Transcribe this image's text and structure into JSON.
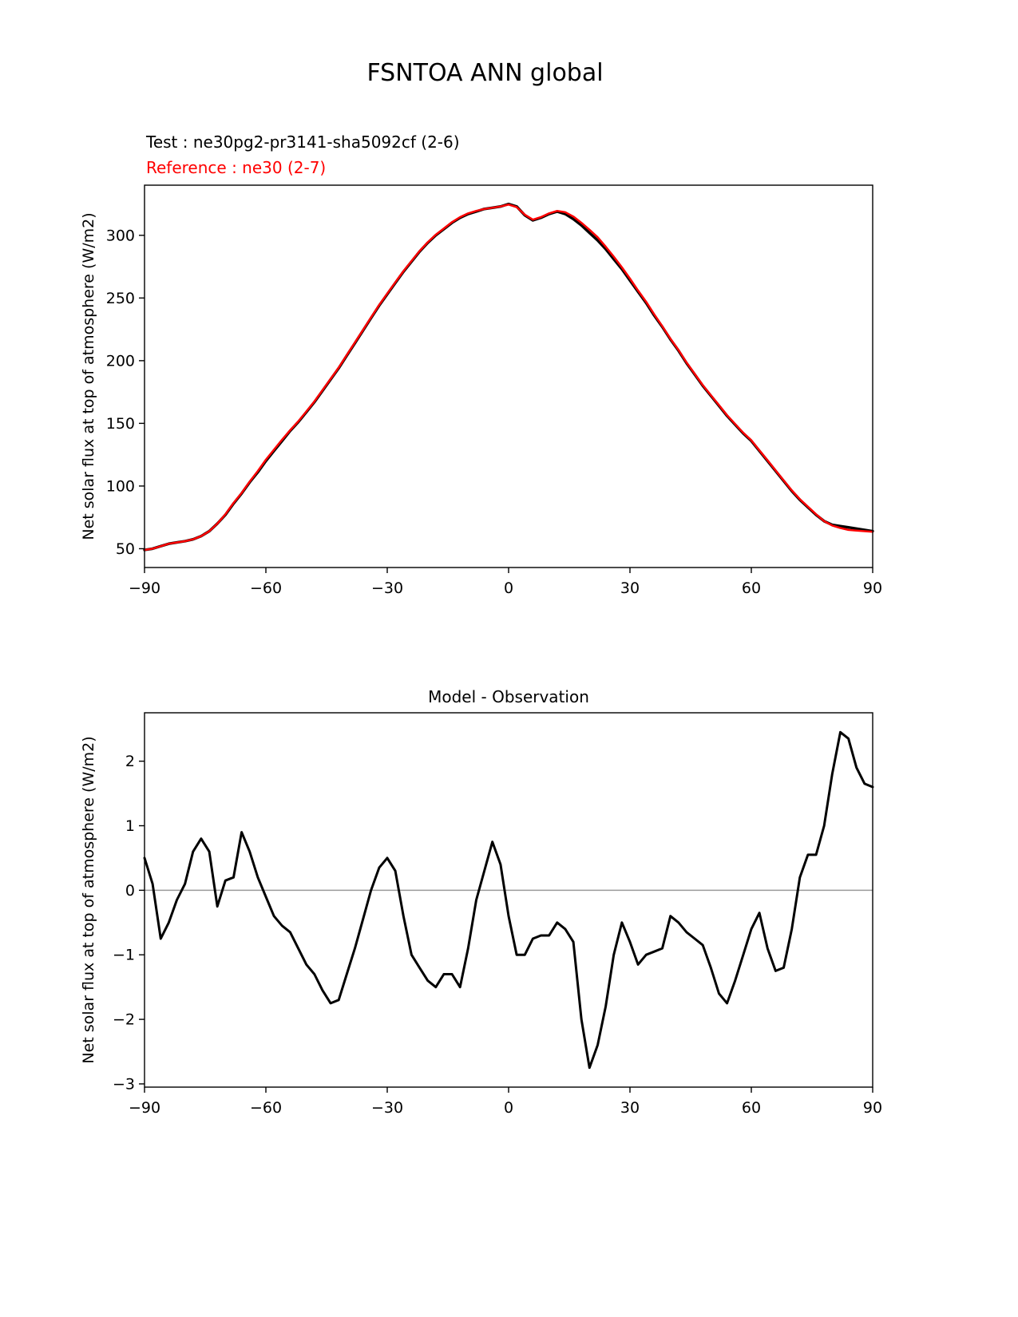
{
  "figure": {
    "title": "FSNTOA ANN global"
  },
  "chart_data": [
    {
      "type": "line",
      "title": "",
      "xlabel": "",
      "ylabel": "Net solar flux at top of atmosphere (W/m2)",
      "xlim": [
        -90,
        90
      ],
      "ylim": [
        35,
        340
      ],
      "grid": false,
      "legend_position": "annotations-top-left",
      "xticks": [
        -90,
        -60,
        -30,
        0,
        30,
        60,
        90
      ],
      "xtick_labels": [
        "−90",
        "−60",
        "−30",
        "0",
        "30",
        "60",
        "90"
      ],
      "yticks": [
        50,
        100,
        150,
        200,
        250,
        300
      ],
      "ytick_labels": [
        "50",
        "100",
        "150",
        "200",
        "250",
        "300"
      ],
      "x": [
        -90,
        -88,
        -86,
        -84,
        -82,
        -80,
        -78,
        -76,
        -74,
        -72,
        -70,
        -68,
        -66,
        -64,
        -62,
        -60,
        -58,
        -56,
        -54,
        -52,
        -50,
        -48,
        -46,
        -44,
        -42,
        -40,
        -38,
        -36,
        -34,
        -32,
        -30,
        -28,
        -26,
        -24,
        -22,
        -20,
        -18,
        -16,
        -14,
        -12,
        -10,
        -8,
        -6,
        -4,
        -2,
        0,
        2,
        4,
        6,
        8,
        10,
        12,
        14,
        16,
        18,
        20,
        22,
        24,
        26,
        28,
        30,
        32,
        34,
        36,
        38,
        40,
        42,
        44,
        46,
        48,
        50,
        52,
        54,
        56,
        58,
        60,
        62,
        64,
        66,
        68,
        70,
        72,
        74,
        76,
        78,
        80,
        82,
        84,
        86,
        88,
        90
      ],
      "series": [
        {
          "name": "Test : ne30pg2-pr3141-sha5092cf (2-6)",
          "color": "#000000",
          "values": [
            49,
            50,
            52,
            54,
            55,
            56,
            57.5,
            60,
            64,
            70,
            77,
            86,
            94,
            103,
            111,
            120,
            128,
            136,
            144,
            151,
            159,
            167,
            176,
            185,
            194,
            204,
            214,
            224,
            234,
            244,
            253,
            262,
            271,
            279,
            287,
            294,
            300,
            305,
            310,
            314,
            317,
            319,
            321,
            322,
            323,
            325,
            323,
            316,
            312,
            314,
            317,
            319,
            317,
            313,
            308,
            302,
            296,
            289,
            281,
            273,
            264,
            255,
            246,
            236,
            227,
            217,
            208,
            198,
            189,
            180,
            172,
            164,
            156,
            149,
            142,
            136,
            128,
            120,
            112,
            104,
            96,
            89,
            83,
            77,
            72,
            69,
            68,
            67,
            66,
            65,
            64
          ]
        },
        {
          "name": "Reference : ne30 (2-7)",
          "color": "#ff0000",
          "values": [
            49,
            50,
            52,
            54,
            55,
            56,
            57.5,
            60,
            64,
            70,
            77.5,
            86.5,
            94.5,
            103.5,
            112,
            121,
            129,
            137,
            144.5,
            151.5,
            159.5,
            167.5,
            176.5,
            185.5,
            194.5,
            204.5,
            214.5,
            224.5,
            234.5,
            244.5,
            253.5,
            262.5,
            271.5,
            279.5,
            287.5,
            294.5,
            300.5,
            305.5,
            310.5,
            314.5,
            317.5,
            319.5,
            321,
            322,
            323,
            324.5,
            322.5,
            316.5,
            312.5,
            314.5,
            317.5,
            319.5,
            318.5,
            315,
            310,
            304.5,
            298.5,
            291,
            283,
            274.5,
            265.5,
            256,
            247,
            237,
            227.5,
            217.5,
            208.5,
            198.5,
            189.5,
            180.5,
            172.5,
            164.5,
            156.5,
            149.5,
            142.5,
            136.5,
            128.5,
            120.5,
            112.5,
            104.5,
            96.5,
            89.5,
            83.5,
            77.5,
            72,
            68.5,
            66.5,
            65,
            64.5,
            64,
            63.5
          ]
        }
      ]
    },
    {
      "type": "line",
      "title": "Model - Observation",
      "xlabel": "",
      "ylabel": "Net solar flux at top of atmosphere (W/m2)",
      "xlim": [
        -90,
        90
      ],
      "ylim": [
        -3.05,
        2.75
      ],
      "grid": false,
      "zero_line": true,
      "zero_line_color": "#9a9a9a",
      "xticks": [
        -90,
        -60,
        -30,
        0,
        30,
        60,
        90
      ],
      "xtick_labels": [
        "−90",
        "−60",
        "−30",
        "0",
        "30",
        "60",
        "90"
      ],
      "yticks": [
        -3,
        -2,
        -1,
        0,
        1,
        2
      ],
      "ytick_labels": [
        "−3",
        "−2",
        "−1",
        "0",
        "1",
        "2"
      ],
      "x": [
        -90,
        -88,
        -86,
        -84,
        -82,
        -80,
        -78,
        -76,
        -74,
        -72,
        -70,
        -68,
        -66,
        -64,
        -62,
        -60,
        -58,
        -56,
        -54,
        -52,
        -50,
        -48,
        -46,
        -44,
        -42,
        -40,
        -38,
        -36,
        -34,
        -32,
        -30,
        -28,
        -26,
        -24,
        -22,
        -20,
        -18,
        -16,
        -14,
        -12,
        -10,
        -8,
        -6,
        -4,
        -2,
        0,
        2,
        4,
        6,
        8,
        10,
        12,
        14,
        16,
        18,
        20,
        22,
        24,
        26,
        28,
        30,
        32,
        34,
        36,
        38,
        40,
        42,
        44,
        46,
        48,
        50,
        52,
        54,
        56,
        58,
        60,
        62,
        64,
        66,
        68,
        70,
        72,
        74,
        76,
        78,
        80,
        82,
        84,
        86,
        88,
        90
      ],
      "series": [
        {
          "name": "Model - Observation",
          "color": "#000000",
          "values": [
            0.5,
            0.1,
            -0.75,
            -0.5,
            -0.15,
            0.1,
            0.6,
            0.8,
            0.6,
            -0.25,
            0.15,
            0.2,
            0.9,
            0.6,
            0.2,
            -0.1,
            -0.4,
            -0.55,
            -0.65,
            -0.9,
            -1.15,
            -1.3,
            -1.55,
            -1.75,
            -1.7,
            -1.3,
            -0.9,
            -0.45,
            0.0,
            0.35,
            0.5,
            0.3,
            -0.4,
            -1.0,
            -1.2,
            -1.4,
            -1.5,
            -1.3,
            -1.3,
            -1.5,
            -0.9,
            -0.15,
            0.3,
            0.75,
            0.4,
            -0.4,
            -1.0,
            -1.0,
            -0.75,
            -0.7,
            -0.7,
            -0.5,
            -0.6,
            -0.8,
            -2.0,
            -2.75,
            -2.4,
            -1.8,
            -1.0,
            -0.5,
            -0.8,
            -1.15,
            -1.0,
            -0.95,
            -0.9,
            -0.4,
            -0.5,
            -0.65,
            -0.75,
            -0.85,
            -1.2,
            -1.6,
            -1.75,
            -1.4,
            -1.0,
            -0.6,
            -0.35,
            -0.9,
            -1.25,
            -1.2,
            -0.6,
            0.2,
            0.55,
            0.55,
            1.0,
            1.8,
            2.45,
            2.35,
            1.9,
            1.65,
            1.6
          ]
        }
      ]
    }
  ]
}
